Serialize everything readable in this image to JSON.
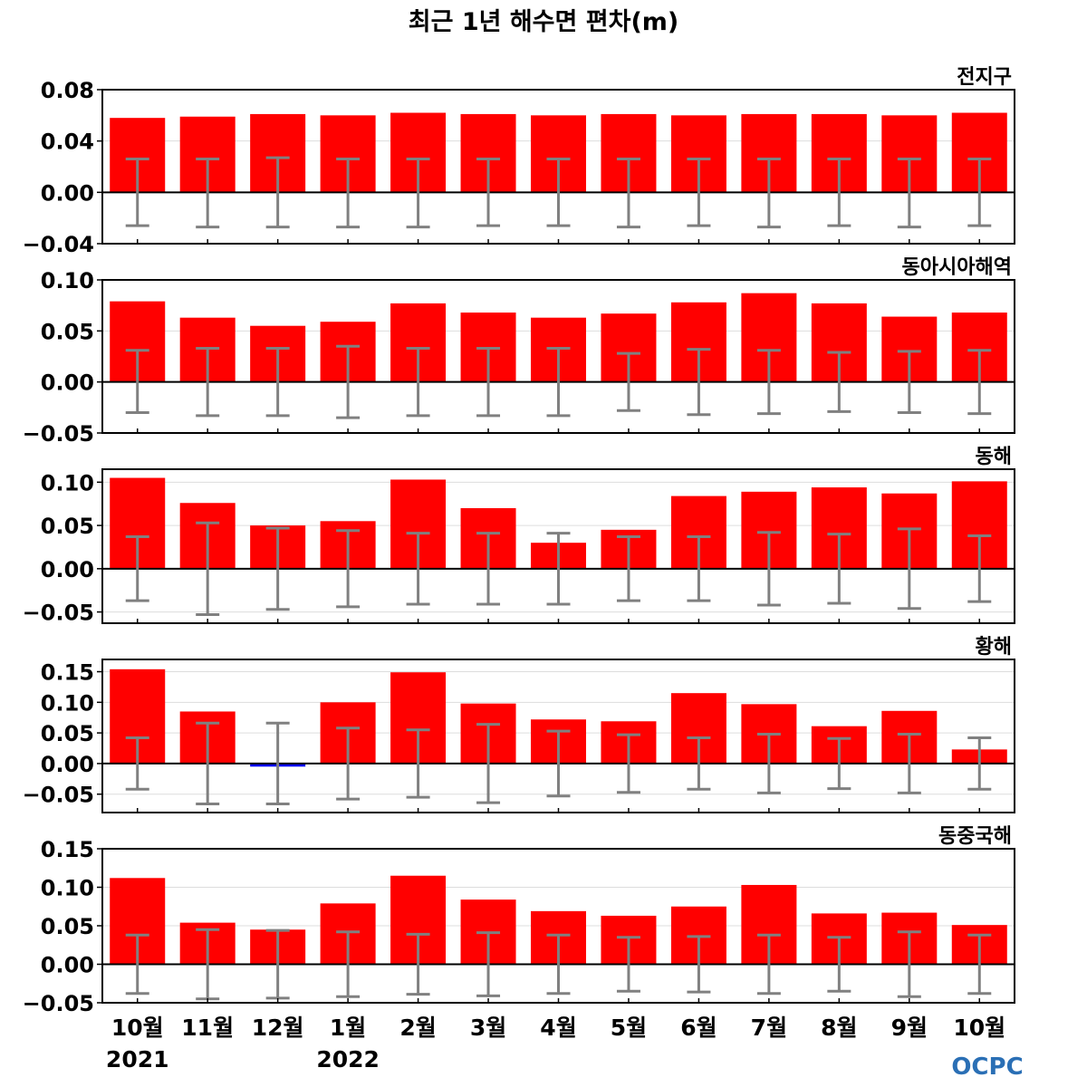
{
  "title": "최근 1년 해수면 편차(m)",
  "logo": "OCPC",
  "colors": {
    "positive_bar": "#ff0000",
    "negative_bar": "#0000ff",
    "error_bar": "#808080",
    "zero_line": "#000000",
    "grid": "#dddddd",
    "logo": "#2a6fb5"
  },
  "chart_data": {
    "type": "bar",
    "categories": [
      "10월",
      "11월",
      "12월",
      "1월",
      "2월",
      "3월",
      "4월",
      "5월",
      "6월",
      "7월",
      "8월",
      "9월",
      "10월"
    ],
    "year_labels": [
      {
        "category_index": 0,
        "label": "2021"
      },
      {
        "category_index": 3,
        "label": "2022"
      }
    ],
    "grid": true,
    "panels": [
      {
        "name": "전지구",
        "ylim": [
          -0.04,
          0.08
        ],
        "yticks": [
          -0.04,
          0.0,
          0.04,
          0.08
        ],
        "ytick_labels": [
          "−0.04",
          "0.00",
          "0.04",
          "0.08"
        ],
        "values": [
          0.058,
          0.059,
          0.061,
          0.06,
          0.062,
          0.061,
          0.06,
          0.061,
          0.06,
          0.061,
          0.061,
          0.06,
          0.062
        ],
        "error_upper": [
          0.026,
          0.026,
          0.027,
          0.026,
          0.026,
          0.026,
          0.026,
          0.026,
          0.026,
          0.026,
          0.026,
          0.026,
          0.026
        ],
        "error_lower": [
          -0.026,
          -0.027,
          -0.027,
          -0.027,
          -0.027,
          -0.026,
          -0.026,
          -0.027,
          -0.026,
          -0.027,
          -0.026,
          -0.027,
          -0.026
        ]
      },
      {
        "name": "동아시아해역",
        "ylim": [
          -0.05,
          0.1
        ],
        "yticks": [
          -0.05,
          0.0,
          0.05,
          0.1
        ],
        "ytick_labels": [
          "−0.05",
          "0.00",
          "0.05",
          "0.10"
        ],
        "values": [
          0.079,
          0.063,
          0.055,
          0.059,
          0.077,
          0.068,
          0.063,
          0.067,
          0.078,
          0.087,
          0.077,
          0.064,
          0.068
        ],
        "error_upper": [
          0.031,
          0.033,
          0.033,
          0.035,
          0.033,
          0.033,
          0.033,
          0.028,
          0.032,
          0.031,
          0.029,
          0.03,
          0.031
        ],
        "error_lower": [
          -0.03,
          -0.033,
          -0.033,
          -0.035,
          -0.033,
          -0.033,
          -0.033,
          -0.028,
          -0.032,
          -0.031,
          -0.029,
          -0.03,
          -0.031
        ]
      },
      {
        "name": "동해",
        "ylim": [
          -0.063,
          0.115
        ],
        "yticks": [
          -0.05,
          0.0,
          0.05,
          0.1
        ],
        "ytick_labels": [
          "−0.05",
          "0.00",
          "0.05",
          "0.10"
        ],
        "values": [
          0.105,
          0.076,
          0.05,
          0.055,
          0.103,
          0.07,
          0.03,
          0.045,
          0.084,
          0.089,
          0.094,
          0.087,
          0.101
        ],
        "error_upper": [
          0.037,
          0.053,
          0.047,
          0.044,
          0.041,
          0.041,
          0.041,
          0.037,
          0.037,
          0.042,
          0.04,
          0.046,
          0.038
        ],
        "error_lower": [
          -0.037,
          -0.053,
          -0.047,
          -0.044,
          -0.041,
          -0.041,
          -0.041,
          -0.037,
          -0.037,
          -0.042,
          -0.04,
          -0.046,
          -0.038
        ]
      },
      {
        "name": "황해",
        "ylim": [
          -0.08,
          0.17
        ],
        "yticks": [
          -0.05,
          0.0,
          0.05,
          0.1,
          0.15
        ],
        "ytick_labels": [
          "−0.05",
          "0.00",
          "0.05",
          "0.10",
          "0.15"
        ],
        "values": [
          0.154,
          0.085,
          -0.005,
          0.1,
          0.149,
          0.098,
          0.072,
          0.069,
          0.115,
          0.097,
          0.061,
          0.086,
          0.023
        ],
        "error_upper": [
          0.042,
          0.066,
          0.066,
          0.058,
          0.055,
          0.064,
          0.053,
          0.047,
          0.042,
          0.048,
          0.041,
          0.048,
          0.042
        ],
        "error_lower": [
          -0.042,
          -0.066,
          -0.066,
          -0.058,
          -0.055,
          -0.064,
          -0.053,
          -0.047,
          -0.042,
          -0.048,
          -0.041,
          -0.048,
          -0.042
        ]
      },
      {
        "name": "동중국해",
        "ylim": [
          -0.05,
          0.15
        ],
        "yticks": [
          -0.05,
          0.0,
          0.05,
          0.1,
          0.15
        ],
        "ytick_labels": [
          "−0.05",
          "0.00",
          "0.05",
          "0.10",
          "0.15"
        ],
        "values": [
          0.112,
          0.054,
          0.045,
          0.079,
          0.115,
          0.084,
          0.069,
          0.063,
          0.075,
          0.103,
          0.066,
          0.067,
          0.051
        ],
        "error_upper": [
          0.038,
          0.045,
          0.044,
          0.042,
          0.039,
          0.041,
          0.038,
          0.035,
          0.036,
          0.038,
          0.035,
          0.042,
          0.038
        ],
        "error_lower": [
          -0.038,
          -0.045,
          -0.044,
          -0.042,
          -0.039,
          -0.041,
          -0.038,
          -0.035,
          -0.036,
          -0.038,
          -0.035,
          -0.042,
          -0.038
        ]
      }
    ]
  }
}
